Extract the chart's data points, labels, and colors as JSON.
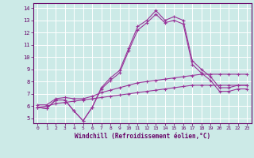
{
  "xlabel": "Windchill (Refroidissement éolien,°C)",
  "background_color": "#cceae7",
  "line_color": "#993399",
  "grid_color": "#ffffff",
  "x_ticks": [
    0,
    1,
    2,
    3,
    4,
    5,
    6,
    7,
    8,
    9,
    10,
    11,
    12,
    13,
    14,
    15,
    16,
    17,
    18,
    19,
    20,
    21,
    22,
    23
  ],
  "y_ticks": [
    5,
    6,
    7,
    8,
    9,
    10,
    11,
    12,
    13,
    14
  ],
  "ylim": [
    4.6,
    14.4
  ],
  "xlim": [
    -0.5,
    23.5
  ],
  "series": [
    {
      "x": [
        0,
        1,
        2,
        3,
        4,
        5,
        6,
        7,
        8,
        9,
        10,
        11,
        12,
        13,
        14,
        15,
        16,
        17,
        18,
        19,
        20,
        21,
        22,
        23
      ],
      "y": [
        5.9,
        5.8,
        6.5,
        6.5,
        5.6,
        4.8,
        5.9,
        7.5,
        8.3,
        8.9,
        10.7,
        12.5,
        13.0,
        13.8,
        13.0,
        13.3,
        13.0,
        9.7,
        9.0,
        8.4,
        7.5,
        7.5,
        7.7,
        7.7
      ]
    },
    {
      "x": [
        0,
        1,
        2,
        3,
        4,
        5,
        6,
        7,
        8,
        9,
        10,
        11,
        12,
        13,
        14,
        15,
        16,
        17,
        18,
        19,
        20,
        21,
        22,
        23
      ],
      "y": [
        5.9,
        5.8,
        6.5,
        6.5,
        5.6,
        4.8,
        5.9,
        7.4,
        8.1,
        8.7,
        10.5,
        12.2,
        12.8,
        13.5,
        12.8,
        13.0,
        12.7,
        9.4,
        8.7,
        8.1,
        7.2,
        7.2,
        7.4,
        7.4
      ]
    },
    {
      "x": [
        0,
        1,
        2,
        3,
        4,
        5,
        6,
        7,
        8,
        9,
        10,
        11,
        12,
        13,
        14,
        15,
        16,
        17,
        18,
        19,
        20,
        21,
        22,
        23
      ],
      "y": [
        6.1,
        6.1,
        6.6,
        6.7,
        6.6,
        6.6,
        6.8,
        7.1,
        7.3,
        7.5,
        7.7,
        7.9,
        8.0,
        8.1,
        8.2,
        8.3,
        8.4,
        8.5,
        8.6,
        8.6,
        8.6,
        8.6,
        8.6,
        8.6
      ]
    },
    {
      "x": [
        0,
        1,
        2,
        3,
        4,
        5,
        6,
        7,
        8,
        9,
        10,
        11,
        12,
        13,
        14,
        15,
        16,
        17,
        18,
        19,
        20,
        21,
        22,
        23
      ],
      "y": [
        5.9,
        6.0,
        6.2,
        6.3,
        6.4,
        6.5,
        6.6,
        6.7,
        6.8,
        6.9,
        7.0,
        7.1,
        7.2,
        7.3,
        7.4,
        7.5,
        7.6,
        7.7,
        7.7,
        7.7,
        7.7,
        7.7,
        7.7,
        7.7
      ]
    }
  ]
}
